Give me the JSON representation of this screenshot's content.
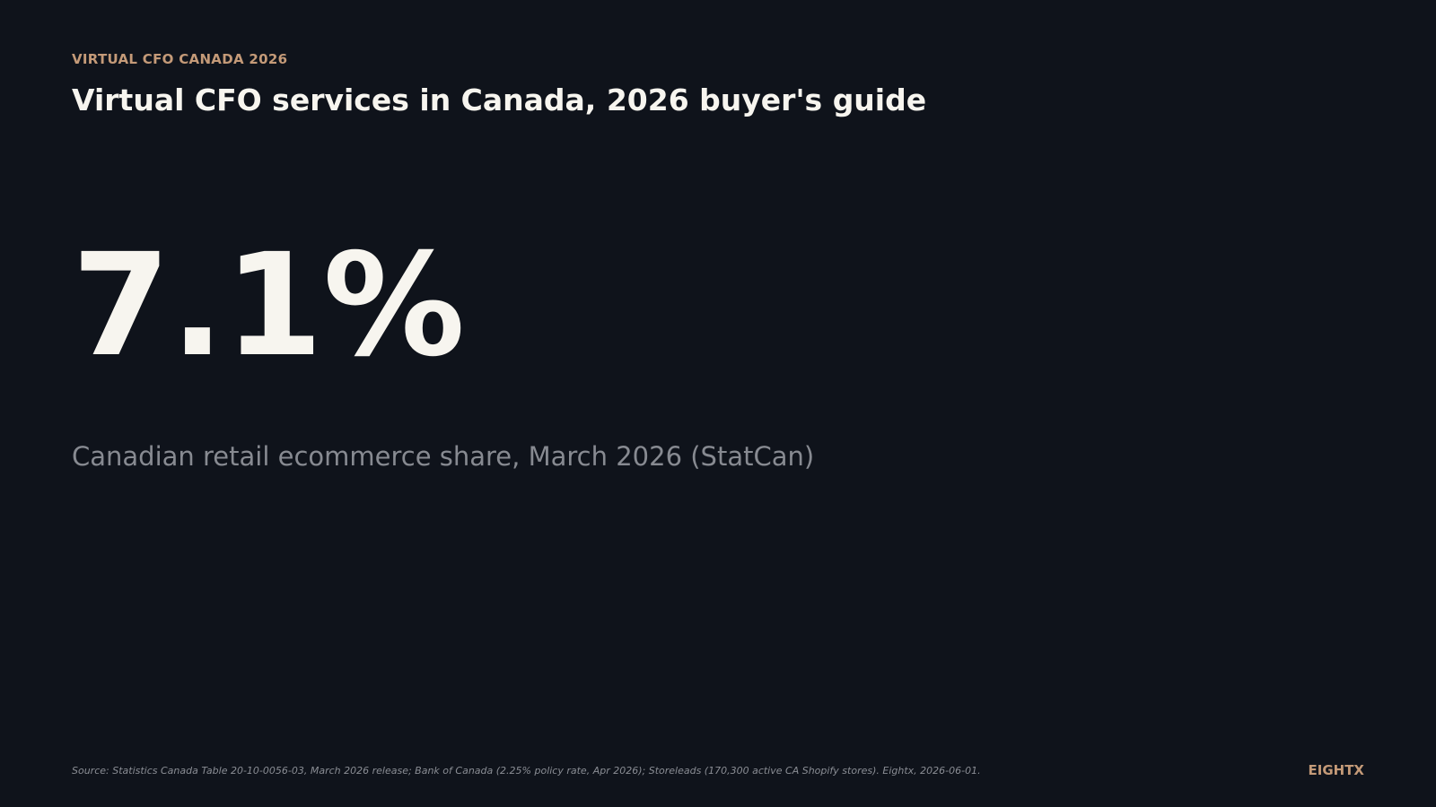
{
  "slide": {
    "eyebrow": "VIRTUAL CFO CANADA 2026",
    "title": "Virtual CFO services in Canada, 2026 buyer's guide",
    "stat": {
      "value": "7.1%",
      "caption": "Canadian retail ecommerce share, March 2026 (StatCan)"
    },
    "source": "Source: Statistics Canada Table 20-10-0056-03, March 2026 release; Bank of Canada (2.25% policy rate, Apr 2026); Storeleads (170,300 active CA Shopify stores). Eightx, 2026-06-01.",
    "brand": "EIGHTX"
  },
  "colors": {
    "background": "#0f131b",
    "accent": "#c49a78",
    "primary_text": "#f7f5ef",
    "muted_text": "#878a91"
  }
}
